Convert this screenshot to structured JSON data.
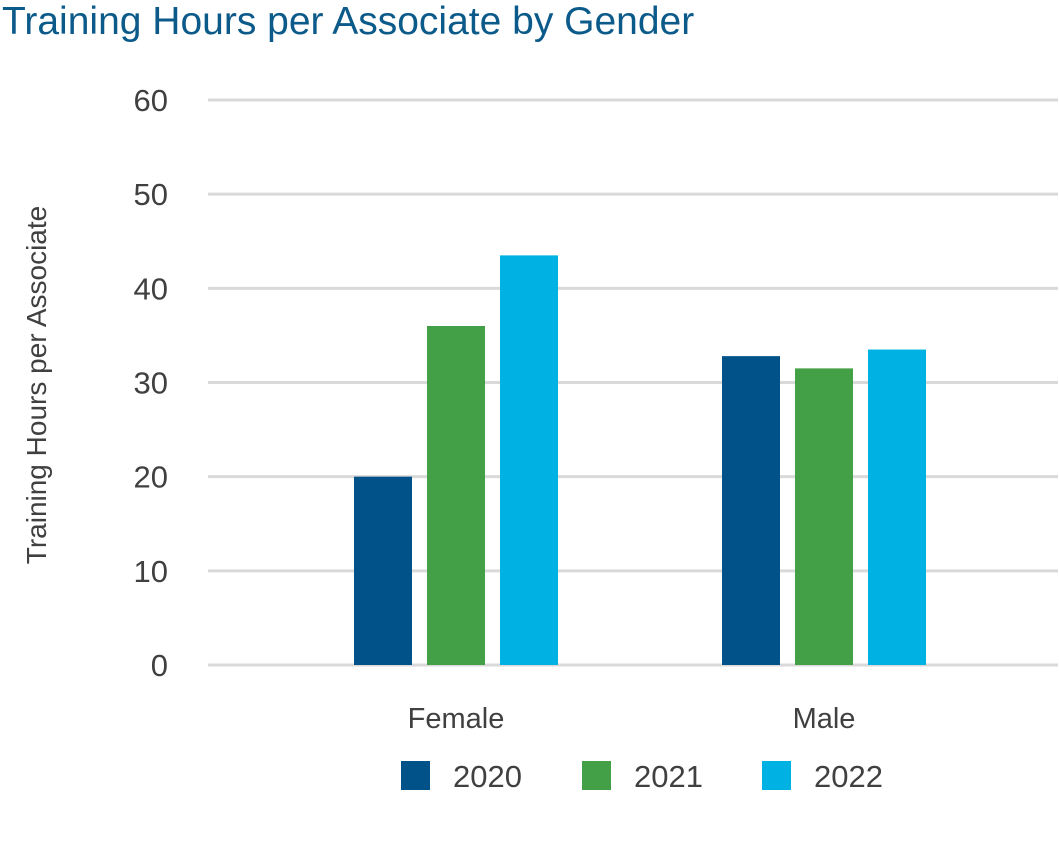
{
  "chart_data": {
    "type": "bar",
    "title": "Training Hours per  Associate by Gender",
    "xlabel": "",
    "ylabel": "Training Hours per Associate",
    "categories": [
      "Female",
      "Male"
    ],
    "series": [
      {
        "name": "2020",
        "values": [
          20,
          32.8
        ]
      },
      {
        "name": "2021",
        "values": [
          36,
          31.5
        ]
      },
      {
        "name": "2022",
        "values": [
          43.5,
          33.5
        ]
      }
    ],
    "ylim": [
      0,
      60
    ],
    "yticks": [
      "0",
      "10",
      "20",
      "30",
      "40",
      "50",
      "60"
    ],
    "grid": true,
    "legend": "bottom",
    "colors": [
      "#005288",
      "#43a047",
      "#00b2e3"
    ]
  }
}
